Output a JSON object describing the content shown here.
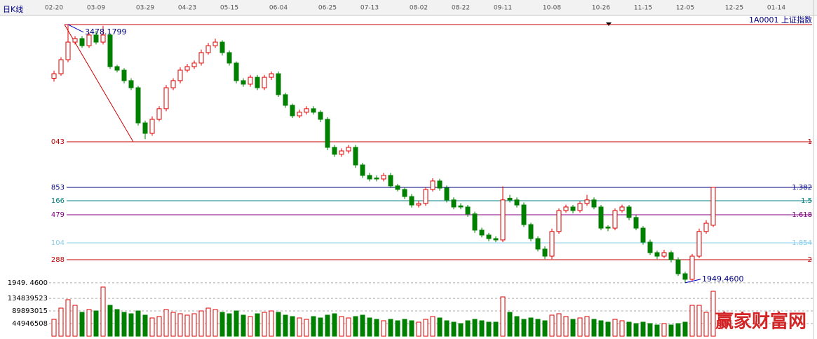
{
  "chart_data": {
    "type": "candlestick",
    "title": "日K线",
    "subtitle": "1A0001 上证指数",
    "watermark": "赢家财富网",
    "categories": [
      "02-20",
      null,
      null,
      null,
      null,
      null,
      "03-09",
      null,
      null,
      null,
      null,
      null,
      null,
      "03-29",
      null,
      null,
      null,
      null,
      null,
      "04-23",
      null,
      null,
      null,
      null,
      null,
      "05-15",
      null,
      null,
      null,
      null,
      null,
      null,
      "06-04",
      null,
      null,
      null,
      null,
      null,
      null,
      "06-25",
      null,
      null,
      null,
      null,
      null,
      "07-13",
      null,
      null,
      null,
      null,
      null,
      null,
      "08-02",
      null,
      null,
      null,
      null,
      null,
      "08-22",
      null,
      null,
      null,
      null,
      null,
      "09-11",
      null,
      null,
      null,
      null,
      null,
      null,
      "10-08",
      null,
      null,
      null,
      null,
      null,
      null,
      "10-26",
      null,
      null,
      null,
      null,
      null,
      "11-15",
      null,
      null,
      null,
      null,
      null,
      "12-05",
      null,
      null,
      null,
      null,
      null,
      null,
      "12-25",
      null,
      null,
      null,
      null,
      null,
      "01-14",
      null
    ],
    "ohlc": [
      [
        3160,
        3205,
        3140,
        3187
      ],
      [
        3187,
        3285,
        3175,
        3270
      ],
      [
        3270,
        3478.1799,
        3255,
        3374
      ],
      [
        3374,
        3410,
        3360,
        3395
      ],
      [
        3395,
        3410,
        3340,
        3353
      ],
      [
        3353,
        3430,
        3340,
        3416
      ],
      [
        3416,
        3440,
        3360,
        3374
      ],
      [
        3374,
        3470,
        3360,
        3416
      ],
      [
        3416,
        3425,
        3215,
        3229
      ],
      [
        3229,
        3240,
        3195,
        3208
      ],
      [
        3208,
        3220,
        3130,
        3146
      ],
      [
        3146,
        3160,
        3090,
        3104
      ],
      [
        3104,
        3115,
        2880,
        2896
      ],
      [
        2896,
        2910,
        2800,
        2834
      ],
      [
        2834,
        2935,
        2820,
        2917
      ],
      [
        2917,
        2995,
        2905,
        2980
      ],
      [
        2980,
        3120,
        2965,
        3104
      ],
      [
        3104,
        3160,
        3090,
        3146
      ],
      [
        3146,
        3225,
        3130,
        3208
      ],
      [
        3208,
        3245,
        3195,
        3229
      ],
      [
        3229,
        3265,
        3215,
        3250
      ],
      [
        3250,
        3330,
        3235,
        3312
      ],
      [
        3312,
        3370,
        3300,
        3353
      ],
      [
        3353,
        3395,
        3340,
        3374
      ],
      [
        3374,
        3385,
        3295,
        3312
      ],
      [
        3312,
        3325,
        3235,
        3250
      ],
      [
        3250,
        3260,
        3130,
        3146
      ],
      [
        3146,
        3160,
        3110,
        3125
      ],
      [
        3125,
        3180,
        3110,
        3166
      ],
      [
        3166,
        3180,
        3090,
        3104
      ],
      [
        3104,
        3180,
        3090,
        3166
      ],
      [
        3166,
        3200,
        3150,
        3187
      ],
      [
        3187,
        3200,
        3050,
        3063
      ],
      [
        3063,
        3075,
        2985,
        3000
      ],
      [
        3000,
        3010,
        2925,
        2938
      ],
      [
        2938,
        2975,
        2925,
        2959
      ],
      [
        2959,
        2995,
        2945,
        2980
      ],
      [
        2980,
        2995,
        2945,
        2959
      ],
      [
        2959,
        2970,
        2900,
        2917
      ],
      [
        2917,
        2930,
        2735,
        2751
      ],
      [
        2751,
        2765,
        2695,
        2710
      ],
      [
        2710,
        2745,
        2695,
        2730
      ],
      [
        2730,
        2765,
        2715,
        2751
      ],
      [
        2751,
        2765,
        2630,
        2647
      ],
      [
        2647,
        2660,
        2570,
        2585
      ],
      [
        2585,
        2600,
        2550,
        2564
      ],
      [
        2570,
        2585,
        2550,
        2564
      ],
      [
        2564,
        2600,
        2550,
        2585
      ],
      [
        2585,
        2600,
        2510,
        2523
      ],
      [
        2523,
        2535,
        2490,
        2502
      ],
      [
        2502,
        2515,
        2445,
        2460
      ],
      [
        2460,
        2475,
        2395,
        2410
      ],
      [
        2410,
        2435,
        2395,
        2419
      ],
      [
        2419,
        2515,
        2405,
        2502
      ],
      [
        2502,
        2568,
        2490,
        2552
      ],
      [
        2552,
        2565,
        2495,
        2510
      ],
      [
        2510,
        2525,
        2425,
        2440
      ],
      [
        2440,
        2455,
        2385,
        2398
      ],
      [
        2405,
        2420,
        2385,
        2398
      ],
      [
        2398,
        2410,
        2340,
        2357
      ],
      [
        2357,
        2370,
        2245,
        2261
      ],
      [
        2261,
        2275,
        2218,
        2232
      ],
      [
        2232,
        2245,
        2195,
        2211
      ],
      [
        2211,
        2225,
        2190,
        2203
      ],
      [
        2203,
        2520,
        2190,
        2440
      ],
      [
        2450,
        2470,
        2425,
        2440
      ],
      [
        2440,
        2455,
        2395,
        2410
      ],
      [
        2410,
        2425,
        2280,
        2294
      ],
      [
        2294,
        2305,
        2195,
        2211
      ],
      [
        2211,
        2225,
        2135,
        2149
      ],
      [
        2149,
        2165,
        2090,
        2107
      ],
      [
        2107,
        2270,
        2090,
        2253
      ],
      [
        2253,
        2390,
        2240,
        2377
      ],
      [
        2377,
        2412,
        2365,
        2398
      ],
      [
        2398,
        2410,
        2360,
        2377
      ],
      [
        2377,
        2432,
        2365,
        2419
      ],
      [
        2419,
        2470,
        2405,
        2440
      ],
      [
        2440,
        2455,
        2385,
        2398
      ],
      [
        2398,
        2410,
        2260,
        2273
      ],
      [
        2280,
        2290,
        2255,
        2273
      ],
      [
        2273,
        2390,
        2260,
        2377
      ],
      [
        2377,
        2412,
        2365,
        2398
      ],
      [
        2398,
        2410,
        2320,
        2336
      ],
      [
        2336,
        2350,
        2260,
        2273
      ],
      [
        2273,
        2285,
        2175,
        2190
      ],
      [
        2190,
        2205,
        2115,
        2128
      ],
      [
        2128,
        2140,
        2090,
        2107
      ],
      [
        2107,
        2145,
        2095,
        2128
      ],
      [
        2128,
        2140,
        2070,
        2086
      ],
      [
        2086,
        2100,
        1990,
        2003
      ],
      [
        2003,
        2015,
        1949.46,
        1970
      ],
      [
        1970,
        2120,
        1955,
        2107
      ],
      [
        2107,
        2270,
        2095,
        2253
      ],
      [
        2253,
        2320,
        2240,
        2302
      ],
      [
        2290,
        2514.3,
        2280,
        2514.3
      ],
      null,
      null,
      null,
      null,
      null,
      null,
      null,
      null,
      null,
      null
    ],
    "volume": [
      60000000,
      100000000,
      130000000,
      110000000,
      85000000,
      95000000,
      90000000,
      175000000,
      110000000,
      95000000,
      85000000,
      80000000,
      90000000,
      75000000,
      65000000,
      70000000,
      95000000,
      85000000,
      80000000,
      75000000,
      80000000,
      90000000,
      100000000,
      95000000,
      85000000,
      80000000,
      90000000,
      75000000,
      70000000,
      80000000,
      85000000,
      90000000,
      85000000,
      75000000,
      70000000,
      65000000,
      60000000,
      70000000,
      65000000,
      75000000,
      80000000,
      70000000,
      65000000,
      70000000,
      75000000,
      65000000,
      60000000,
      55000000,
      60000000,
      55000000,
      60000000,
      55000000,
      50000000,
      60000000,
      70000000,
      65000000,
      55000000,
      50000000,
      45000000,
      55000000,
      60000000,
      55000000,
      50000000,
      50000000,
      140000000,
      85000000,
      70000000,
      60000000,
      65000000,
      60000000,
      55000000,
      75000000,
      80000000,
      70000000,
      60000000,
      65000000,
      70000000,
      60000000,
      55000000,
      50000000,
      60000000,
      55000000,
      50000000,
      45000000,
      50000000,
      45000000,
      40000000,
      45000000,
      40000000,
      45000000,
      50000000,
      110000000,
      110000000,
      85000000,
      160000000,
      null,
      null,
      null,
      null,
      null,
      null,
      null,
      null,
      null,
      null
    ],
    "up_color": "#e00000",
    "down_color": "#008000",
    "ylim": [
      1920,
      3532
    ],
    "yticks": [
      {
        "value": 1949.46,
        "label": "1949. 4600"
      }
    ],
    "volume_ylim": [
      0,
      180000000
    ],
    "volume_ticks": [
      44946508,
      89893015,
      134839523
    ],
    "levels": [
      {
        "value": 3478.1799,
        "color": "#c00000"
      },
      {
        "value": 2784.4,
        "color": "#c00000",
        "label": "043",
        "ratio": "1"
      },
      {
        "value": 2514.3,
        "color": "#000080",
        "label": "853",
        "ratio": "1.382"
      },
      {
        "value": 2435.4,
        "color": "#008080",
        "label": "166",
        "ratio": "1.5"
      },
      {
        "value": 2352.3,
        "color": "#800080",
        "label": "479",
        "ratio": "1.618"
      },
      {
        "value": 2186.1,
        "color": "#87ceeb",
        "label": "104",
        "ratio": "1.854"
      },
      {
        "value": 2086.4,
        "color": "#c00000",
        "label": "288",
        "ratio": "2"
      }
    ],
    "annotations": [
      {
        "text": "3478.1799",
        "value": 3478.1799,
        "index": 2
      },
      {
        "text": "1949.4600",
        "value": 1949.46,
        "index": 90
      }
    ]
  }
}
